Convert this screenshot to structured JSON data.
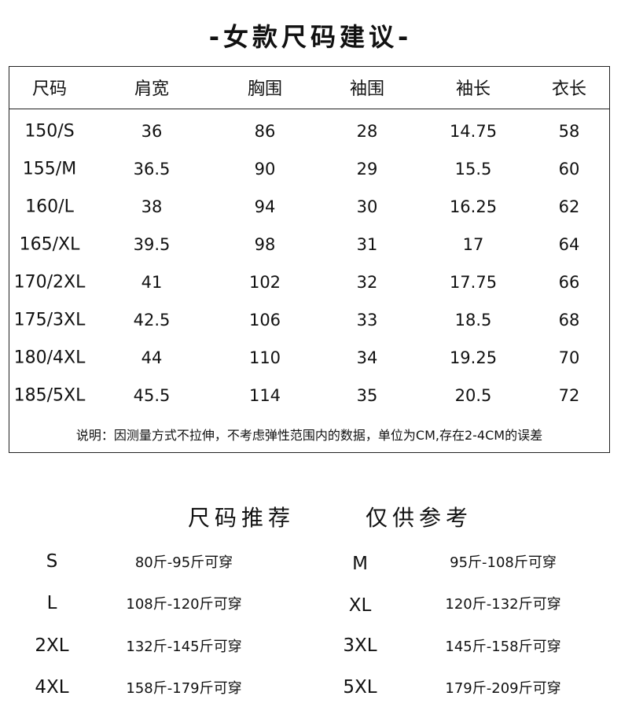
{
  "title": "-女款尺码建议-",
  "table": {
    "headers": [
      "尺码",
      "肩宽",
      "胸围",
      "袖围",
      "袖长",
      "衣长"
    ],
    "rows": [
      [
        "150/S",
        "36",
        "86",
        "28",
        "14.75",
        "58"
      ],
      [
        "155/M",
        "36.5",
        "90",
        "29",
        "15.5",
        "60"
      ],
      [
        "160/L",
        "38",
        "94",
        "30",
        "16.25",
        "62"
      ],
      [
        "165/XL",
        "39.5",
        "98",
        "31",
        "17",
        "64"
      ],
      [
        "170/2XL",
        "41",
        "102",
        "32",
        "17.75",
        "66"
      ],
      [
        "175/3XL",
        "42.5",
        "106",
        "33",
        "18.5",
        "68"
      ],
      [
        "180/4XL",
        "44",
        "110",
        "34",
        "19.25",
        "70"
      ],
      [
        "185/5XL",
        "45.5",
        "114",
        "35",
        "20.5",
        "72"
      ]
    ],
    "note": "说明：因测量方式不拉伸，不考虑弹性范围内的数据，单位为CM,存在2-4CM的误差"
  },
  "recommend": {
    "title_left": "尺码推荐",
    "title_right": "仅供参考",
    "items": [
      {
        "size": "S",
        "range": "80斤-95斤可穿"
      },
      {
        "size": "M",
        "range": "95斤-108斤可穿"
      },
      {
        "size": "L",
        "range": "108斤-120斤可穿"
      },
      {
        "size": "XL",
        "range": "120斤-132斤可穿"
      },
      {
        "size": "2XL",
        "range": "132斤-145斤可穿"
      },
      {
        "size": "3XL",
        "range": "145斤-158斤可穿"
      },
      {
        "size": "4XL",
        "range": "158斤-179斤可穿"
      },
      {
        "size": "5XL",
        "range": "179斤-209斤可穿"
      }
    ]
  }
}
